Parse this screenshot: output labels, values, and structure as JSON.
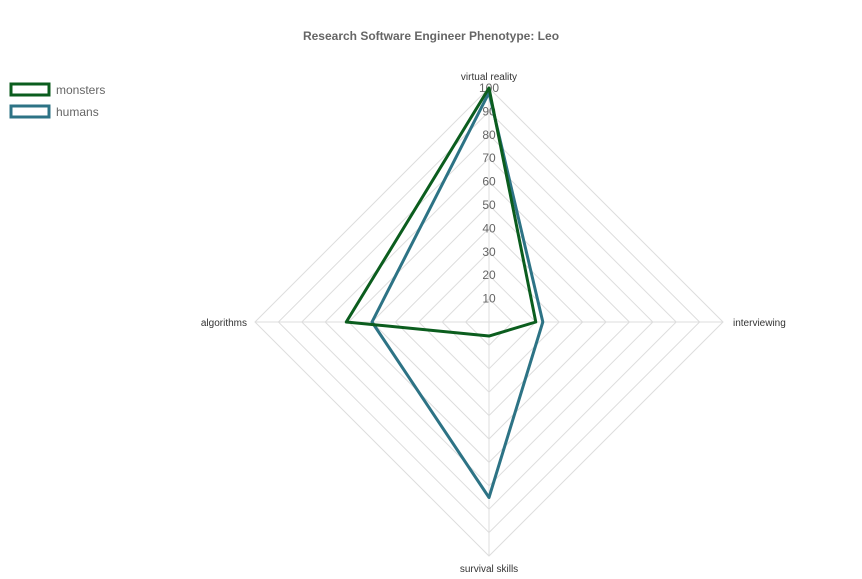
{
  "chart_data": {
    "type": "radar",
    "title": "Research Software Engineer Phenotype: Leo",
    "axes": [
      "virtual reality",
      "interviewing",
      "survival skills",
      "algorithms"
    ],
    "r_ticks": [
      10,
      20,
      30,
      40,
      50,
      60,
      70,
      80,
      90,
      100
    ],
    "r_range": [
      0,
      100
    ],
    "grid": true,
    "legend_position": "top-left",
    "series": [
      {
        "name": "monsters",
        "values": [
          100,
          20,
          6,
          61
        ],
        "color": "#0b5d1e"
      },
      {
        "name": "humans",
        "values": [
          98,
          23,
          75,
          50
        ],
        "color": "#2d7385"
      }
    ]
  }
}
